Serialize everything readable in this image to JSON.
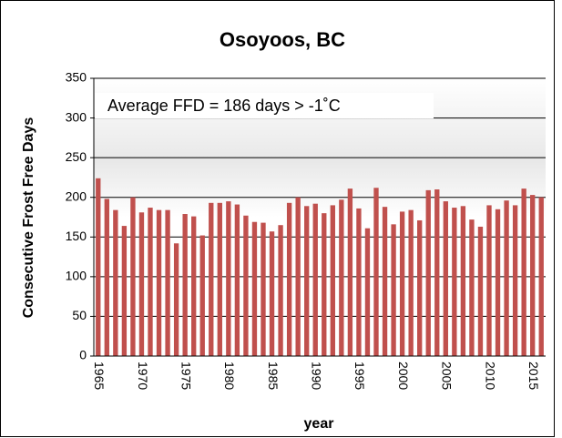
{
  "chart_data": {
    "type": "bar",
    "title": "Osoyoos, BC",
    "x_label": "year",
    "y_label": "Consecutive Frost Free Days",
    "annotation": "Average FFD  =  186 days > -1˚C",
    "categories": [
      "1965",
      null,
      null,
      null,
      null,
      "1970",
      null,
      null,
      null,
      null,
      "1975",
      null,
      null,
      null,
      null,
      "1980",
      null,
      null,
      null,
      null,
      "1985",
      null,
      null,
      null,
      null,
      "1990",
      null,
      null,
      null,
      null,
      "1995",
      null,
      null,
      null,
      null,
      "2000",
      null,
      null,
      null,
      null,
      "2005",
      null,
      null,
      null,
      null,
      "2010",
      null,
      null,
      null,
      null,
      "2015",
      null
    ],
    "values": [
      224,
      198,
      184,
      164,
      200,
      181,
      187,
      184,
      184,
      142,
      179,
      176,
      152,
      193,
      193,
      195,
      191,
      177,
      169,
      168,
      157,
      165,
      193,
      200,
      189,
      192,
      180,
      190,
      197,
      211,
      186,
      161,
      212,
      188,
      166,
      182,
      184,
      171,
      209,
      210,
      195,
      187,
      189,
      172,
      163,
      190,
      185,
      196,
      190,
      211,
      203,
      200
    ],
    "color": "#c0504d",
    "ylim": [
      0,
      350
    ],
    "yticks": [
      0,
      50,
      100,
      150,
      200,
      250,
      300,
      350
    ],
    "grid": true
  }
}
